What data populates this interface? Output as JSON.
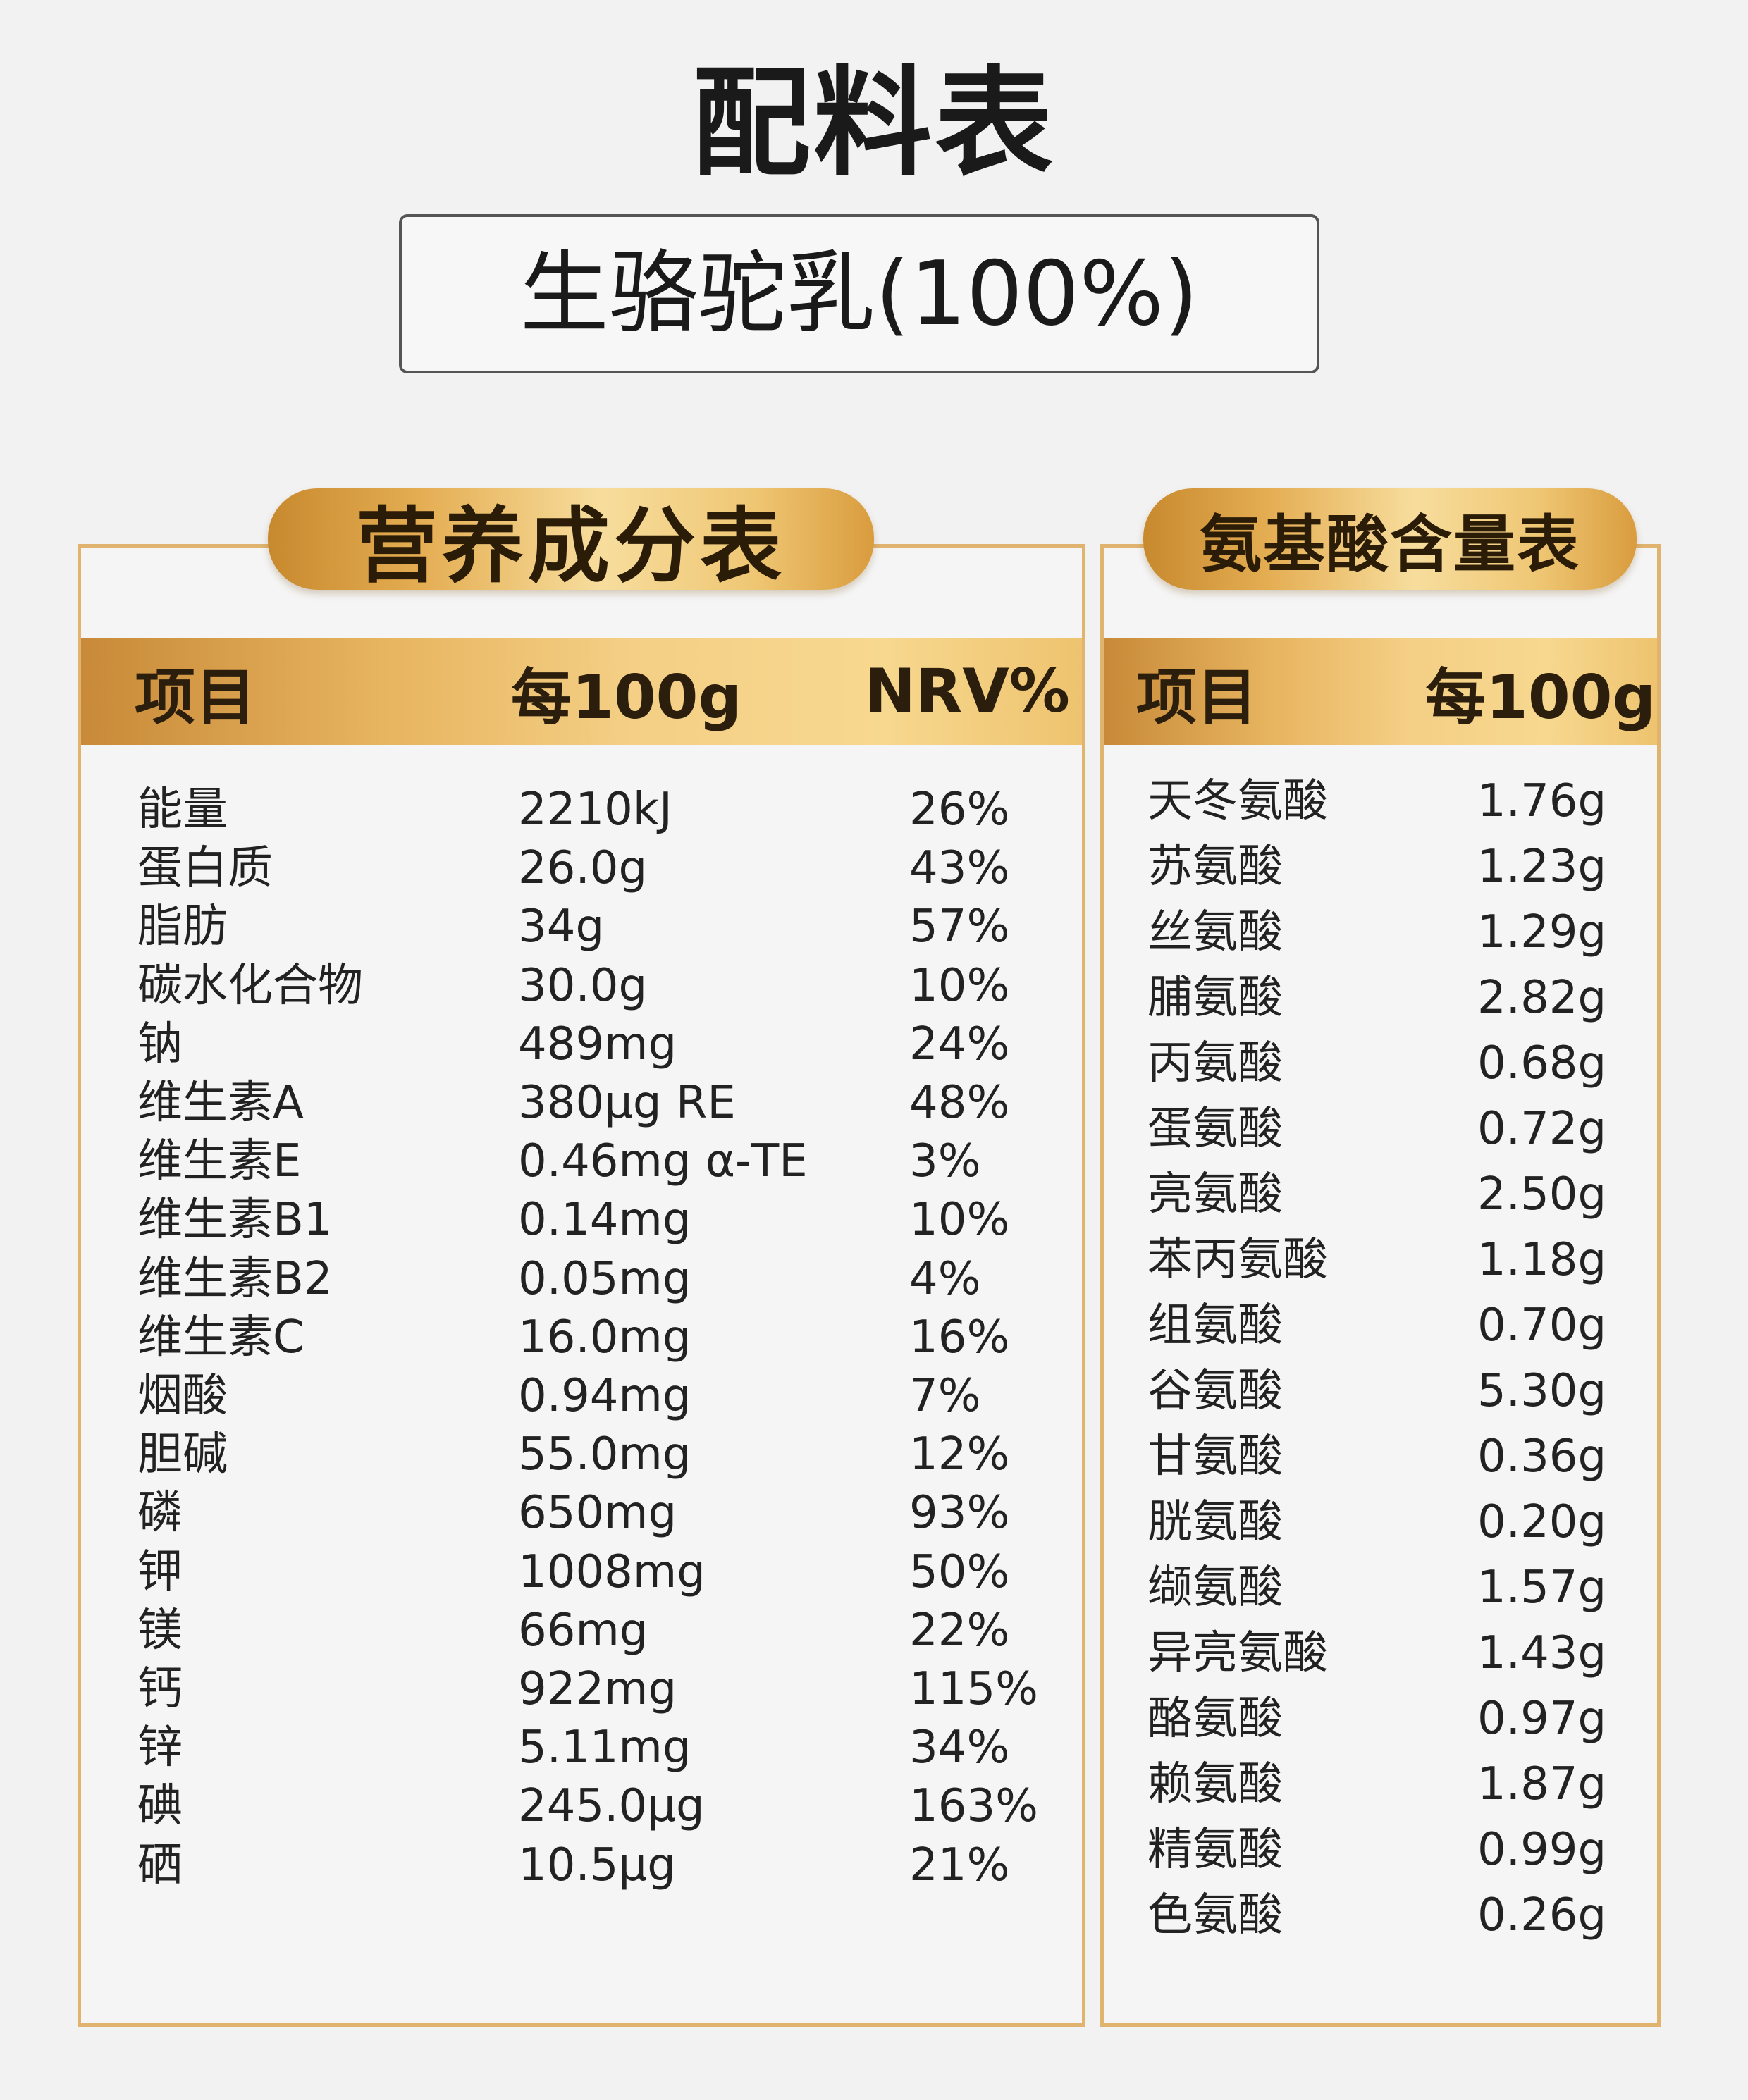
{
  "title": "配料表",
  "ingredient": "生骆驼乳(100%)",
  "nutrition": {
    "badge": "营养成分表",
    "headers": {
      "item": "项目",
      "per100g": "每100g",
      "nrv": "NRV%"
    },
    "rows": [
      {
        "item": "能量",
        "value": "2210kJ",
        "nrv": "26%"
      },
      {
        "item": "蛋白质",
        "value": "26.0g",
        "nrv": "43%"
      },
      {
        "item": "脂肪",
        "value": "34g",
        "nrv": "57%"
      },
      {
        "item": "碳水化合物",
        "value": "30.0g",
        "nrv": "10%"
      },
      {
        "item": "钠",
        "value": "489mg",
        "nrv": "24%"
      },
      {
        "item": "维生素A",
        "value": "380μg RE",
        "nrv": "48%"
      },
      {
        "item": "维生素E",
        "value": "0.46mg α-TE",
        "nrv": "3%"
      },
      {
        "item": "维生素B1",
        "value": "0.14mg",
        "nrv": "10%"
      },
      {
        "item": "维生素B2",
        "value": "0.05mg",
        "nrv": "4%"
      },
      {
        "item": "维生素C",
        "value": "16.0mg",
        "nrv": "16%"
      },
      {
        "item": "烟酸",
        "value": "0.94mg",
        "nrv": "7%"
      },
      {
        "item": "胆碱",
        "value": "55.0mg",
        "nrv": "12%"
      },
      {
        "item": "磷",
        "value": "650mg",
        "nrv": "93%"
      },
      {
        "item": "钾",
        "value": "1008mg",
        "nrv": "50%"
      },
      {
        "item": "镁",
        "value": "66mg",
        "nrv": "22%"
      },
      {
        "item": "钙",
        "value": "922mg",
        "nrv": "115%"
      },
      {
        "item": "锌",
        "value": "5.11mg",
        "nrv": "34%"
      },
      {
        "item": "碘",
        "value": "245.0μg",
        "nrv": "163%"
      },
      {
        "item": "硒",
        "value": "10.5μg",
        "nrv": "21%"
      }
    ]
  },
  "amino": {
    "badge": "氨基酸含量表",
    "headers": {
      "item": "项目",
      "per100g": "每100g"
    },
    "rows": [
      {
        "item": "天冬氨酸",
        "value": "1.76g"
      },
      {
        "item": "苏氨酸",
        "value": "1.23g"
      },
      {
        "item": "丝氨酸",
        "value": "1.29g"
      },
      {
        "item": "脯氨酸",
        "value": "2.82g"
      },
      {
        "item": "丙氨酸",
        "value": "0.68g"
      },
      {
        "item": "蛋氨酸",
        "value": "0.72g"
      },
      {
        "item": "亮氨酸",
        "value": "2.50g"
      },
      {
        "item": "苯丙氨酸",
        "value": "1.18g"
      },
      {
        "item": "组氨酸",
        "value": "0.70g"
      },
      {
        "item": "谷氨酸",
        "value": "5.30g"
      },
      {
        "item": "甘氨酸",
        "value": "0.36g"
      },
      {
        "item": "胱氨酸",
        "value": "0.20g"
      },
      {
        "item": "缬氨酸",
        "value": "1.57g"
      },
      {
        "item": "异亮氨酸",
        "value": "1.43g"
      },
      {
        "item": "酪氨酸",
        "value": "0.97g"
      },
      {
        "item": "赖氨酸",
        "value": "1.87g"
      },
      {
        "item": "精氨酸",
        "value": "0.99g"
      },
      {
        "item": "色氨酸",
        "value": "0.26g"
      }
    ]
  }
}
